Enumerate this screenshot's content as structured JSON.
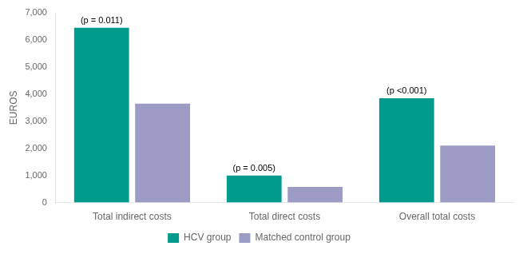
{
  "chart_data": {
    "type": "bar",
    "categories": [
      "Total indirect costs",
      "Total direct costs",
      "Overall total costs"
    ],
    "series": [
      {
        "name": "HCV group",
        "color": "#009B8D",
        "values": [
          6450,
          1000,
          3850
        ]
      },
      {
        "name": "Matched control group",
        "color": "#9B9BC4",
        "values": [
          3650,
          580,
          2100
        ]
      }
    ],
    "ylabel": "EUROS",
    "ylim": [
      0,
      7000
    ],
    "yticks": [
      0,
      {
        "value": 1000,
        "label": "1,000"
      },
      {
        "value": 2000,
        "label": "2,000"
      },
      {
        "value": 3000,
        "label": "3,000"
      },
      {
        "value": 4000,
        "label": "4,000"
      },
      {
        "value": 5000,
        "label": "5,000"
      },
      {
        "value": 6000,
        "label": "6,000"
      },
      {
        "value": 7000,
        "label": "7,000"
      }
    ],
    "annotations": [
      "(p = 0.011)",
      "(p = 0.005)",
      "(p <0.001)"
    ],
    "grid": false,
    "legend": "bottom"
  }
}
